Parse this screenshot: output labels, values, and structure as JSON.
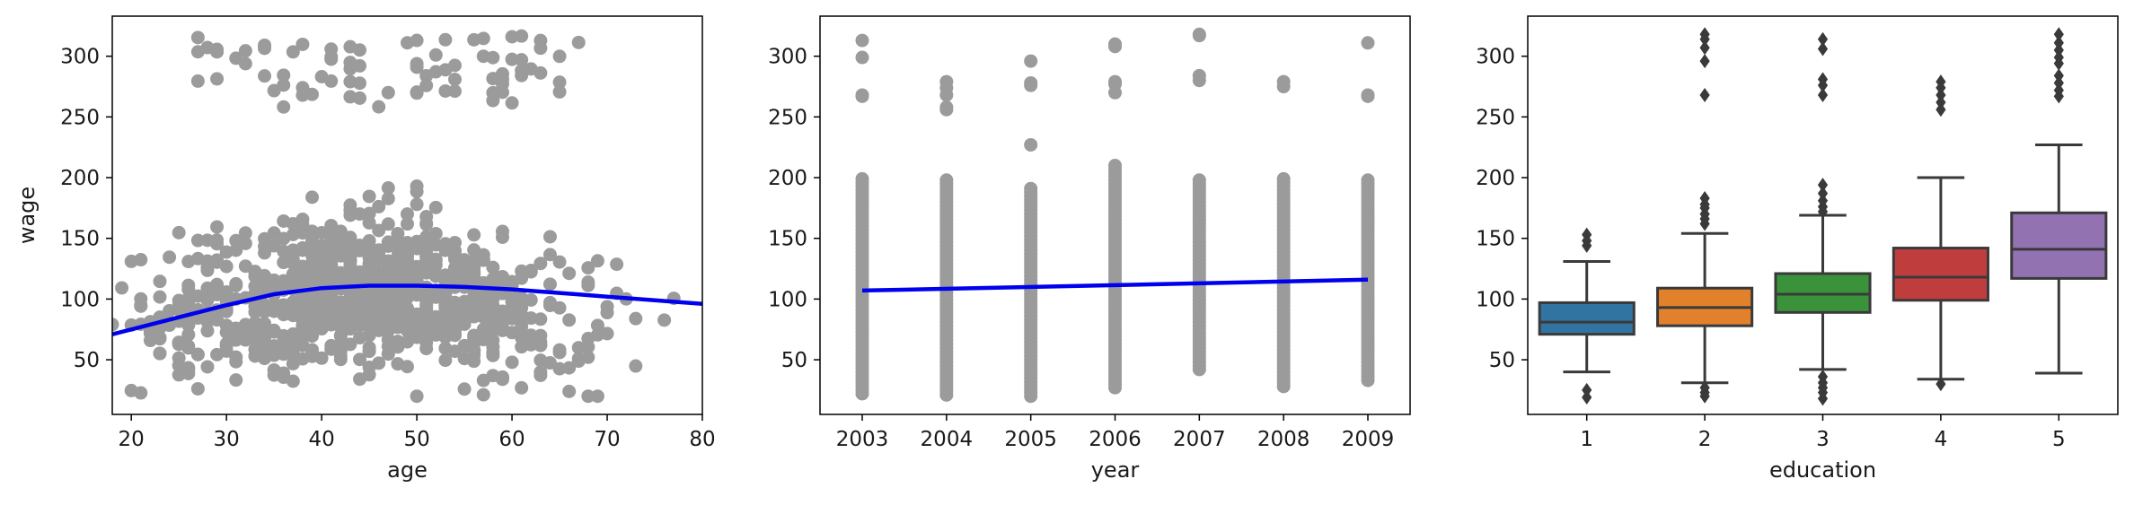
{
  "colors": {
    "scatter": "#808080",
    "fit_line": "#0000ee",
    "box_edge": "#3a3a3a",
    "axis": "#000000",
    "box_fill": [
      "#3274a1",
      "#e1812c",
      "#3a923a",
      "#c03d3e",
      "#9372b2"
    ]
  },
  "chart_data": [
    {
      "type": "scatter",
      "xlabel": "age",
      "ylabel": "wage",
      "xlim": [
        18,
        80
      ],
      "ylim": [
        5,
        333
      ],
      "xticks": [
        20,
        30,
        40,
        50,
        60,
        70,
        80
      ],
      "yticks": [
        50,
        100,
        150,
        200,
        250,
        300
      ],
      "grid": false,
      "scatter_cloud": {
        "main_band": {
          "x_range": [
            18,
            80
          ],
          "y_range": [
            20,
            200
          ],
          "peak_x": 45
        },
        "high_band": {
          "x_range": [
            26,
            67
          ],
          "y_range": [
            258,
            318
          ]
        }
      },
      "trend": {
        "x": [
          18,
          25,
          30,
          35,
          40,
          45,
          50,
          55,
          60,
          65,
          70,
          75,
          80
        ],
        "y": [
          71,
          85,
          95,
          104,
          109,
          111,
          111,
          110,
          108,
          105,
          102,
          99,
          96
        ]
      },
      "trend_label": ""
    },
    {
      "type": "scatter",
      "xlabel": "year",
      "ylabel": "",
      "categories": [
        "2003",
        "2004",
        "2005",
        "2006",
        "2007",
        "2008",
        "2009"
      ],
      "x": [
        2003,
        2004,
        2005,
        2006,
        2007,
        2008,
        2009
      ],
      "ylim": [
        5,
        333
      ],
      "yticks": [
        50,
        100,
        150,
        200,
        250,
        300
      ],
      "grid": false,
      "column_main_range": [
        [
          22,
          200
        ],
        [
          21,
          200
        ],
        [
          20,
          192
        ],
        [
          27,
          212
        ],
        [
          42,
          200
        ],
        [
          28,
          200
        ],
        [
          33,
          200
        ]
      ],
      "column_outliers": [
        [
          267,
          268,
          299,
          313
        ],
        [
          256,
          258,
          268,
          274,
          279
        ],
        [
          227,
          276,
          278,
          296
        ],
        [
          270,
          277,
          279,
          308,
          310
        ],
        [
          280,
          284,
          317,
          318
        ],
        [
          275,
          279
        ],
        [
          267,
          268,
          311
        ]
      ],
      "trend": {
        "x": [
          2003,
          2009
        ],
        "y": [
          107,
          116
        ]
      },
      "trend_label": ""
    },
    {
      "type": "box",
      "xlabel": "education",
      "ylabel": "",
      "categories": [
        "1",
        "2",
        "3",
        "4",
        "5"
      ],
      "ylim": [
        5,
        333
      ],
      "yticks": [
        50,
        100,
        150,
        200,
        250,
        300
      ],
      "grid": false,
      "boxes": [
        {
          "q1": 71,
          "median": 81,
          "q3": 97,
          "whisker_low": 40,
          "whisker_high": 131,
          "outliers": [
            19,
            25,
            144,
            148,
            153
          ]
        },
        {
          "q1": 78,
          "median": 93,
          "q3": 109,
          "whisker_low": 31,
          "whisker_high": 154,
          "outliers": [
            20,
            23,
            27,
            162,
            166,
            170,
            175,
            178,
            183,
            268,
            296,
            307,
            314,
            318
          ]
        },
        {
          "q1": 89,
          "median": 104,
          "q3": 121,
          "whisker_low": 42,
          "whisker_high": 169,
          "outliers": [
            18,
            23,
            27,
            31,
            36,
            172,
            176,
            181,
            187,
            194,
            268,
            276,
            281,
            306,
            314
          ]
        },
        {
          "q1": 99,
          "median": 118,
          "q3": 142,
          "whisker_low": 34,
          "whisker_high": 200,
          "outliers": [
            30,
            256,
            262,
            268,
            274,
            279
          ]
        },
        {
          "q1": 117,
          "median": 141,
          "q3": 171,
          "whisker_low": 39,
          "whisker_high": 227,
          "outliers": [
            267,
            272,
            278,
            284,
            294,
            299,
            305,
            311,
            318
          ]
        }
      ]
    }
  ]
}
